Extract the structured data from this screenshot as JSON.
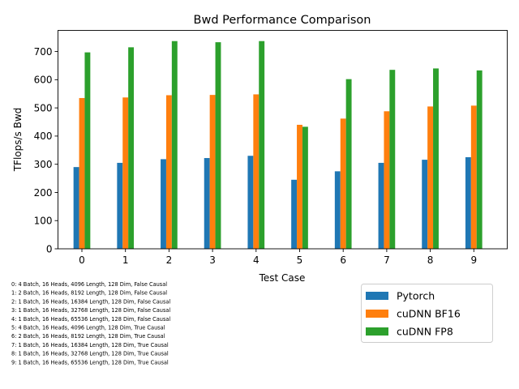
{
  "chart_data": {
    "type": "bar",
    "title": "Bwd Performance Comparison",
    "xlabel": "Test Case",
    "ylabel": "TFlops/s Bwd",
    "categories": [
      "0",
      "1",
      "2",
      "3",
      "4",
      "5",
      "6",
      "7",
      "8",
      "9"
    ],
    "ylim": [
      0,
      775
    ],
    "yticks": [
      0,
      100,
      200,
      300,
      400,
      500,
      600,
      700
    ],
    "grid": false,
    "legend_position": "lower-right",
    "series": [
      {
        "name": "Pytorch",
        "color": "#1f77b4",
        "values": [
          290,
          305,
          318,
          322,
          330,
          245,
          275,
          305,
          316,
          325
        ]
      },
      {
        "name": "cuDNN BF16",
        "color": "#ff7f0e",
        "values": [
          535,
          537,
          545,
          546,
          548,
          440,
          462,
          488,
          505,
          508
        ]
      },
      {
        "name": "cuDNN FP8",
        "color": "#2ca02c",
        "values": [
          697,
          715,
          737,
          733,
          737,
          433,
          602,
          635,
          640,
          633
        ]
      }
    ],
    "annotations": [
      "0: 4 Batch, 16 Heads, 4096 Length, 128 Dim, False Causal",
      "1: 2 Batch, 16 Heads, 8192 Length, 128 Dim, False Causal",
      "2: 1 Batch, 16 Heads, 16384 Length, 128 Dim, False Causal",
      "3: 1 Batch, 16 Heads, 32768 Length, 128 Dim, False Causal",
      "4: 1 Batch, 16 Heads, 65536 Length, 128 Dim, False Causal",
      "5: 4 Batch, 16 Heads, 4096 Length, 128 Dim, True Causal",
      "6: 2 Batch, 16 Heads, 8192 Length, 128 Dim, True Causal",
      "7: 1 Batch, 16 Heads, 16384 Length, 128 Dim, True Causal",
      "8: 1 Batch, 16 Heads, 32768 Length, 128 Dim, True Causal",
      "9: 1 Batch, 16 Heads, 65536 Length, 128 Dim, True Causal"
    ]
  }
}
